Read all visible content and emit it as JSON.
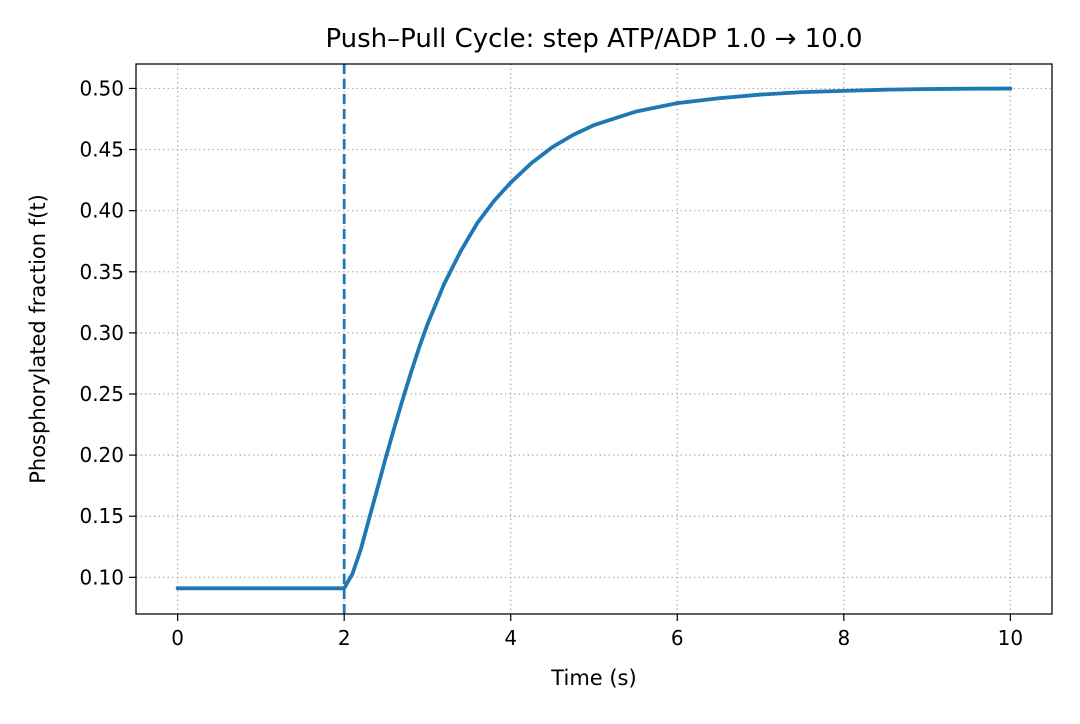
{
  "chart_data": {
    "type": "line",
    "title": "Push–Pull Cycle: step ATP/ADP 1.0 → 10.0",
    "xlabel": "Time (s)",
    "ylabel": "Phosphorylated fraction  f(t)",
    "xlim": [
      -0.5,
      10.5
    ],
    "ylim": [
      0.07,
      0.52
    ],
    "x_ticks": [
      0,
      2,
      4,
      6,
      8,
      10
    ],
    "x_tick_labels": [
      "0",
      "2",
      "4",
      "6",
      "8",
      "10"
    ],
    "y_ticks": [
      0.1,
      0.15,
      0.2,
      0.25,
      0.3,
      0.35,
      0.4,
      0.45,
      0.5
    ],
    "y_tick_labels": [
      "0.10",
      "0.15",
      "0.20",
      "0.25",
      "0.30",
      "0.35",
      "0.40",
      "0.45",
      "0.50"
    ],
    "grid": true,
    "grid_style": "dotted",
    "legend": "none",
    "series": [
      {
        "color": "#1f77b4",
        "x": [
          0,
          0.5,
          1,
          1.5,
          2,
          2.1,
          2.2,
          2.3,
          2.4,
          2.5,
          2.6,
          2.7,
          2.8,
          2.9,
          3.0,
          3.2,
          3.4,
          3.6,
          3.8,
          4.0,
          4.25,
          4.5,
          4.75,
          5.0,
          5.5,
          6.0,
          6.5,
          7.0,
          7.5,
          8.0,
          8.5,
          9.0,
          9.5,
          10.0
        ],
        "y": [
          0.091,
          0.091,
          0.091,
          0.091,
          0.091,
          0.103,
          0.123,
          0.148,
          0.173,
          0.198,
          0.222,
          0.245,
          0.267,
          0.288,
          0.307,
          0.34,
          0.367,
          0.39,
          0.408,
          0.423,
          0.439,
          0.452,
          0.462,
          0.47,
          0.481,
          0.488,
          0.492,
          0.495,
          0.497,
          0.498,
          0.499,
          0.4995,
          0.4998,
          0.4999
        ]
      }
    ],
    "annotations": [
      {
        "type": "vertical-line",
        "x": 2,
        "color": "#1f77b4",
        "style": "dashed"
      }
    ]
  }
}
